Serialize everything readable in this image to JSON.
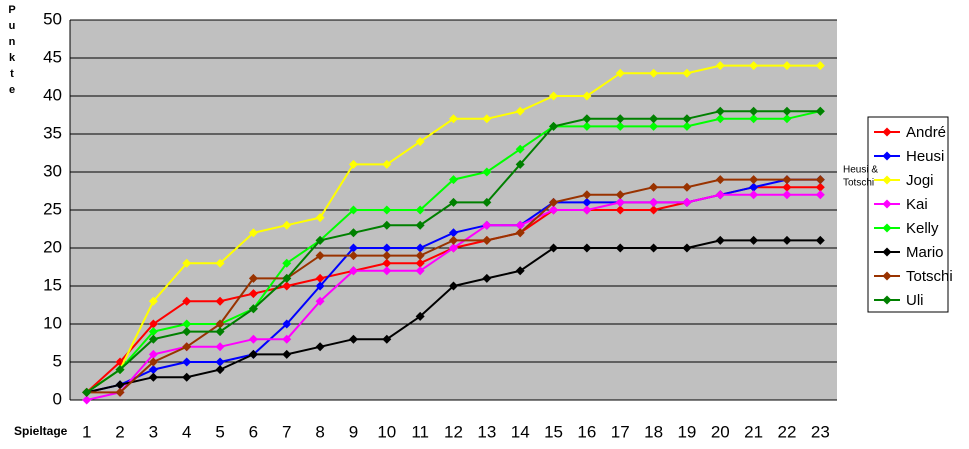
{
  "chart_data": {
    "type": "line",
    "y_label": "Punkte",
    "x_label": "Spieltage",
    "annotation": [
      "Heusi &",
      "Totschi"
    ],
    "categories": [
      "1",
      "2",
      "3",
      "4",
      "5",
      "6",
      "7",
      "8",
      "9",
      "10",
      "11",
      "12",
      "13",
      "14",
      "15",
      "16",
      "17",
      "18",
      "19",
      "20",
      "21",
      "22",
      "23"
    ],
    "ylim": [
      0,
      50
    ],
    "yticks": [
      0,
      5,
      10,
      15,
      20,
      25,
      30,
      35,
      40,
      45,
      50
    ],
    "grid": true,
    "legend": "right",
    "series": [
      {
        "name": "André",
        "color": "#ff0000",
        "values": [
          1,
          5,
          10,
          13,
          13,
          14,
          15,
          16,
          17,
          18,
          18,
          20,
          21,
          22,
          25,
          25,
          25,
          25,
          26,
          27,
          28,
          28,
          28
        ]
      },
      {
        "name": "Heusi",
        "color": "#0000ff",
        "values": [
          1,
          2,
          4,
          5,
          5,
          6,
          10,
          15,
          20,
          20,
          20,
          22,
          23,
          23,
          26,
          26,
          26,
          26,
          26,
          27,
          28,
          29,
          29
        ]
      },
      {
        "name": "Jogi",
        "color": "#ffff00",
        "values": [
          1,
          4,
          13,
          18,
          18,
          22,
          23,
          24,
          31,
          31,
          34,
          37,
          37,
          38,
          40,
          40,
          43,
          43,
          43,
          44,
          44,
          44,
          44
        ]
      },
      {
        "name": "Kai",
        "color": "#ff00ff",
        "values": [
          0,
          1,
          6,
          7,
          7,
          8,
          8,
          13,
          17,
          17,
          17,
          20,
          23,
          23,
          25,
          25,
          26,
          26,
          26,
          27,
          27,
          27,
          27
        ]
      },
      {
        "name": "Kelly",
        "color": "#00ff00",
        "values": [
          1,
          4,
          9,
          10,
          10,
          12,
          18,
          21,
          25,
          25,
          25,
          29,
          30,
          33,
          36,
          36,
          36,
          36,
          36,
          37,
          37,
          37,
          38
        ]
      },
      {
        "name": "Mario",
        "color": "#000000",
        "values": [
          1,
          2,
          3,
          3,
          4,
          6,
          6,
          7,
          8,
          8,
          11,
          15,
          16,
          17,
          20,
          20,
          20,
          20,
          20,
          21,
          21,
          21,
          21
        ]
      },
      {
        "name": "Totschi",
        "color": "#993300",
        "values": [
          1,
          1,
          5,
          7,
          10,
          16,
          16,
          19,
          19,
          19,
          19,
          21,
          21,
          22,
          26,
          27,
          27,
          28,
          28,
          29,
          29,
          29,
          29
        ]
      },
      {
        "name": "Uli",
        "color": "#008000",
        "values": [
          1,
          4,
          8,
          9,
          9,
          12,
          16,
          21,
          22,
          23,
          23,
          26,
          26,
          31,
          36,
          37,
          37,
          37,
          37,
          38,
          38,
          38,
          38
        ]
      }
    ]
  }
}
